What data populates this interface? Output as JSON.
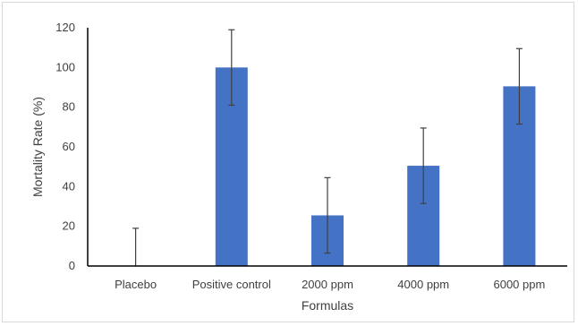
{
  "chart_data": {
    "type": "bar",
    "title": "",
    "xlabel": "Formulas",
    "ylabel": "Mortality Rate (%)",
    "categories": [
      "Placebo",
      "Positive control",
      "2000 ppm",
      "4000 ppm",
      "6000 ppm"
    ],
    "values": [
      0,
      100,
      25.5,
      50.5,
      90.5
    ],
    "error": [
      19,
      19,
      19,
      19,
      19
    ],
    "ylim": [
      0,
      120
    ],
    "yticks": [
      "0",
      "20",
      "40",
      "60",
      "80",
      "100",
      "120"
    ],
    "grid": false,
    "legend": "none",
    "bar_color": "#4472c4",
    "error_color": "#404040",
    "axis_color": "#000000"
  }
}
